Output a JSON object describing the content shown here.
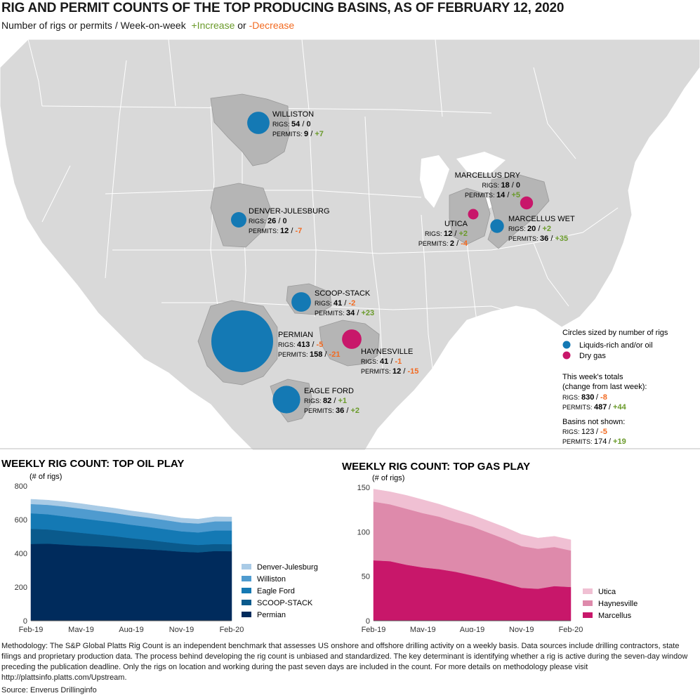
{
  "title": "RIG AND PERMIT COUNTS OF THE TOP PRODUCING BASINS, AS OF FEBRUARY 12, 2020",
  "subtitle": {
    "prefix": "Number of rigs or permits / Week-on-week",
    "increase": "+Increase",
    "or": "or",
    "decrease": "-Decrease"
  },
  "colors": {
    "oil": "#1479b4",
    "gas": "#c8176a",
    "increase": "#6a9a2a",
    "decrease": "#f26a21",
    "map_land": "#d9d9d9",
    "basin": "#b5b5b5"
  },
  "map": {
    "rigs_label": "RIGS:",
    "permits_label": "PERMITS:",
    "basins": [
      {
        "name": "WILLISTON",
        "type": "oil",
        "rigs": "54",
        "rigs_change": "0",
        "permits": "9",
        "permits_change": "+7"
      },
      {
        "name": "DENVER-JULESBURG",
        "type": "oil",
        "rigs": "26",
        "rigs_change": "0",
        "permits": "12",
        "permits_change": "-7"
      },
      {
        "name": "SCOOP-STACK",
        "type": "oil",
        "rigs": "41",
        "rigs_change": "-2",
        "permits": "34",
        "permits_change": "+23"
      },
      {
        "name": "PERMIAN",
        "type": "oil",
        "rigs": "413",
        "rigs_change": "-5",
        "permits": "158",
        "permits_change": "-21"
      },
      {
        "name": "EAGLE FORD",
        "type": "oil",
        "rigs": "82",
        "rigs_change": "+1",
        "permits": "36",
        "permits_change": "+2"
      },
      {
        "name": "HAYNESVILLE",
        "type": "gas",
        "rigs": "41",
        "rigs_change": "-1",
        "permits": "12",
        "permits_change": "-15"
      },
      {
        "name": "UTICA",
        "type": "gas",
        "rigs": "12",
        "rigs_change": "+2",
        "permits": "2",
        "permits_change": "-4"
      },
      {
        "name": "MARCELLUS DRY",
        "type": "gas",
        "rigs": "18",
        "rigs_change": "0",
        "permits": "14",
        "permits_change": "+5"
      },
      {
        "name": "MARCELLUS WET",
        "type": "oil",
        "rigs": "20",
        "rigs_change": "+2",
        "permits": "36",
        "permits_change": "+35"
      }
    ],
    "legend": {
      "title": "Circles sized by number of rigs",
      "oil_label": "Liquids-rich and/or oil",
      "gas_label": "Dry gas"
    },
    "totals": {
      "heading_line1": "This week's totals",
      "heading_line2": "(change from last week):",
      "rigs": "830",
      "rigs_change": "-8",
      "permits": "487",
      "permits_change": "+44"
    },
    "not_shown": {
      "heading": "Basins not shown:",
      "rigs": "123",
      "rigs_change": "-5",
      "permits": "174",
      "permits_change": "+19"
    }
  },
  "chart_data": [
    {
      "type": "area",
      "stacked": true,
      "title": "WEEKLY RIG COUNT: TOP OIL PLAY",
      "ylabel": "(# of rigs)",
      "ylim": [
        0,
        800
      ],
      "yticks": [
        0,
        200,
        400,
        600,
        800
      ],
      "xlim": [
        "2019-02-01",
        "2020-02-12"
      ],
      "xticks": [
        "Feb-19",
        "May-19",
        "Aug-19",
        "Nov-19",
        "Feb-20"
      ],
      "x": [
        "Feb-19",
        "Mar-19",
        "Apr-19",
        "May-19",
        "Jun-19",
        "Jul-19",
        "Aug-19",
        "Sep-19",
        "Oct-19",
        "Nov-19",
        "Dec-19",
        "Jan-20",
        "Feb-20"
      ],
      "series": [
        {
          "name": "Permian",
          "color": "#002b5c",
          "values": [
            456,
            458,
            452,
            446,
            442,
            436,
            430,
            424,
            418,
            410,
            406,
            414,
            413
          ]
        },
        {
          "name": "SCOOP-STACK",
          "color": "#0a5a8c",
          "values": [
            90,
            84,
            80,
            76,
            70,
            66,
            60,
            56,
            50,
            47,
            44,
            42,
            41
          ]
        },
        {
          "name": "Eagle Ford",
          "color": "#1479b4",
          "values": [
            92,
            90,
            88,
            86,
            84,
            82,
            80,
            78,
            76,
            74,
            74,
            80,
            82
          ]
        },
        {
          "name": "Williston",
          "color": "#4f9bcf",
          "values": [
            55,
            56,
            58,
            58,
            56,
            55,
            54,
            54,
            54,
            52,
            53,
            54,
            54
          ]
        },
        {
          "name": "Denver-Julesburg",
          "color": "#a9cbe6",
          "values": [
            28,
            28,
            29,
            29,
            29,
            29,
            28,
            27,
            26,
            26,
            26,
            27,
            26
          ]
        }
      ]
    },
    {
      "type": "area",
      "stacked": true,
      "title": "WEEKLY RIG COUNT: TOP GAS PLAY",
      "ylabel": "(# of rigs)",
      "ylim": [
        0,
        150
      ],
      "yticks": [
        0,
        50,
        100,
        150
      ],
      "xlim": [
        "2019-02-01",
        "2020-02-12"
      ],
      "xticks": [
        "Feb-19",
        "May-19",
        "Aug-19",
        "Nov-19",
        "Feb-20"
      ],
      "x": [
        "Feb-19",
        "Mar-19",
        "Apr-19",
        "May-19",
        "Jun-19",
        "Jul-19",
        "Aug-19",
        "Sep-19",
        "Oct-19",
        "Nov-19",
        "Dec-19",
        "Jan-20",
        "Feb-20"
      ],
      "series": [
        {
          "name": "Marcellus",
          "color": "#c8176a",
          "values": [
            68,
            67,
            63,
            60,
            58,
            55,
            51,
            47,
            42,
            37,
            36,
            39,
            38
          ]
        },
        {
          "name": "Haynesville",
          "color": "#de8aab",
          "values": [
            66,
            64,
            63,
            61,
            59,
            56,
            55,
            52,
            50,
            47,
            45,
            44,
            41
          ]
        },
        {
          "name": "Utica",
          "color": "#f0c0d3",
          "values": [
            14,
            14,
            15,
            15,
            14,
            14,
            13,
            13,
            13,
            13,
            12,
            12,
            12
          ]
        }
      ]
    }
  ],
  "footer": {
    "methodology": "Methodology: The S&P Global Platts Rig Count is an independent benchmark that assesses US onshore and offshore drilling activity on a weekly basis. Data sources include drilling contractors, state filings and proprietary production data. The process behind developing the rig count is unbiased and standardized. The key determinant is identifying whether a rig is active during the seven-day window preceding the publication deadline. Only the rigs on location and working during the past seven days are included in the count. For more details on methodology please visit http://plattsinfo.platts.com/Upstream.",
    "source": "Source: Enverus Drillinginfo"
  }
}
